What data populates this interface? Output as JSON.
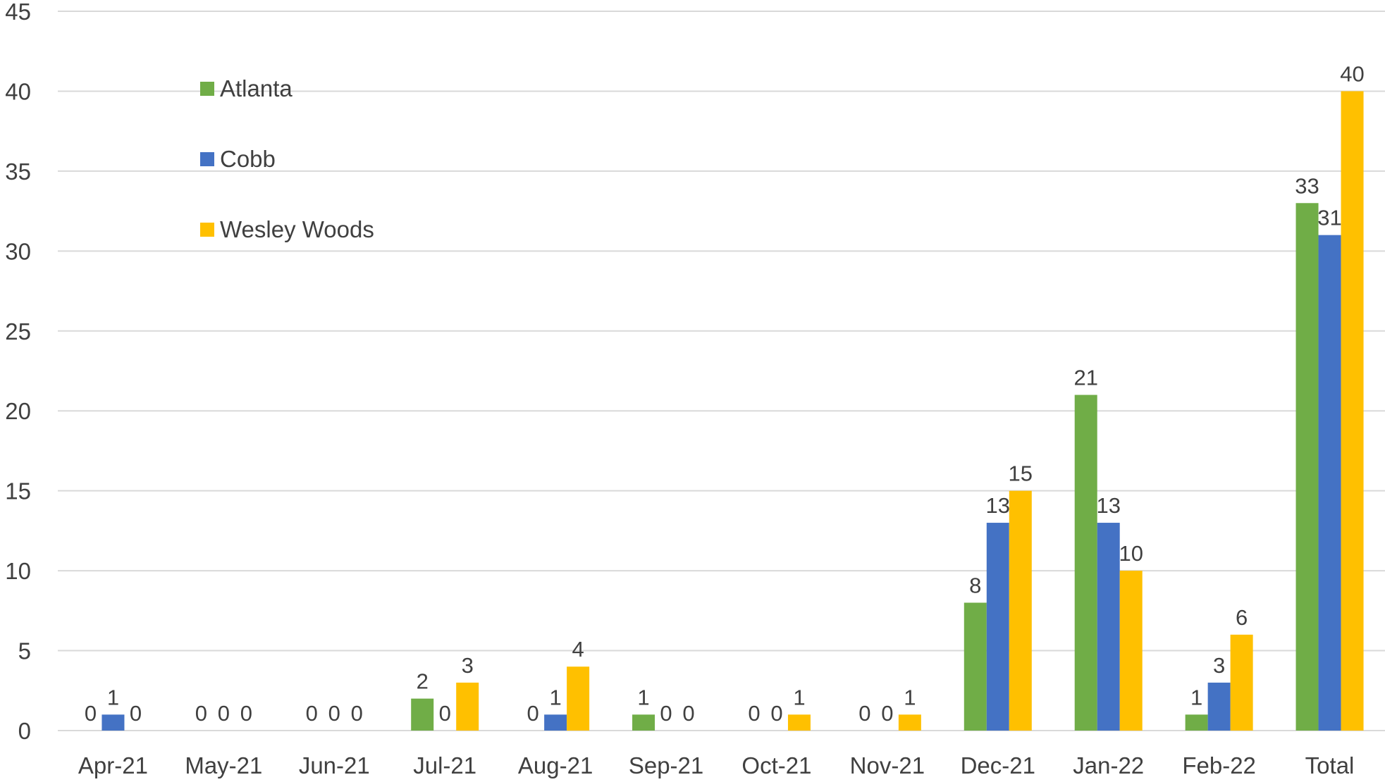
{
  "chart_data": {
    "type": "bar",
    "categories": [
      "Apr-21",
      "May-21",
      "Jun-21",
      "Jul-21",
      "Aug-21",
      "Sep-21",
      "Oct-21",
      "Nov-21",
      "Dec-21",
      "Jan-22",
      "Feb-22",
      "Total"
    ],
    "series": [
      {
        "name": "Atlanta",
        "color": "#70ad47",
        "values": [
          0,
          0,
          0,
          2,
          0,
          1,
          0,
          0,
          8,
          21,
          1,
          33
        ]
      },
      {
        "name": "Cobb",
        "color": "#4472c4",
        "values": [
          1,
          0,
          0,
          0,
          1,
          0,
          0,
          0,
          13,
          13,
          3,
          31
        ]
      },
      {
        "name": "Wesley Woods",
        "color": "#ffc000",
        "values": [
          0,
          0,
          0,
          3,
          4,
          0,
          1,
          1,
          15,
          10,
          6,
          40
        ]
      }
    ],
    "title": "",
    "xlabel": "",
    "ylabel": "",
    "ylim": [
      0,
      45
    ],
    "yticks": [
      0,
      5,
      10,
      15,
      20,
      25,
      30,
      35,
      40,
      45
    ],
    "grid": true,
    "data_labels": true,
    "legend": "top-left, inside plot"
  }
}
